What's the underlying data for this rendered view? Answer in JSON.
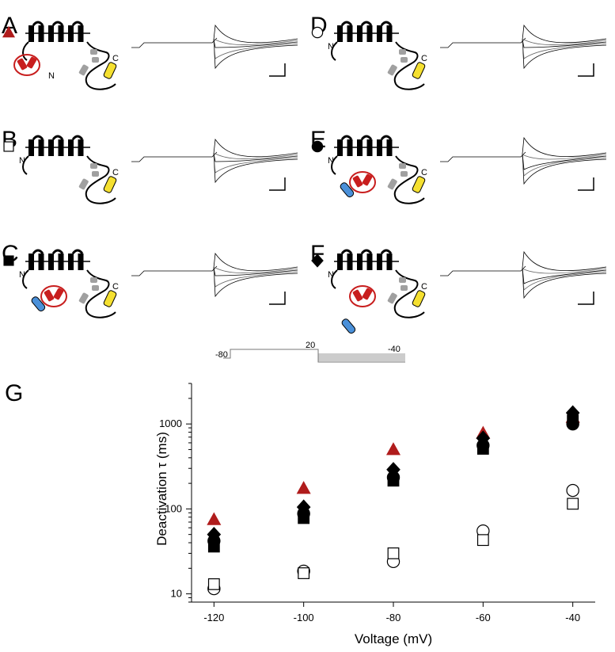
{
  "panels": [
    {
      "id": "A",
      "label": "A",
      "symbol": "triangle",
      "filled": true,
      "color": "#b01c1c",
      "blue": false,
      "red": true,
      "gray": true
    },
    {
      "id": "B",
      "label": "B",
      "symbol": "square",
      "filled": false,
      "color": "#000000",
      "blue": false,
      "red": false,
      "gray": true
    },
    {
      "id": "C",
      "label": "C",
      "symbol": "square",
      "filled": true,
      "color": "#000000",
      "blue": true,
      "red": true,
      "gray": true
    },
    {
      "id": "D",
      "label": "D",
      "symbol": "circle",
      "filled": false,
      "color": "#000000",
      "blue": false,
      "red": false,
      "gray": true
    },
    {
      "id": "E",
      "label": "E",
      "symbol": "circle",
      "filled": true,
      "color": "#000000",
      "blue": true,
      "red": true,
      "gray": true
    },
    {
      "id": "F",
      "label": "F",
      "symbol": "diamond",
      "filled": true,
      "color": "#000000",
      "blue": true,
      "red": true,
      "gray": true
    }
  ],
  "terminal_labels": {
    "n": "N",
    "c": "C"
  },
  "protocol": {
    "holding": "-80",
    "step": "20",
    "test": "-40"
  },
  "colors": {
    "red": "#c81e1e",
    "blue": "#4a90d9",
    "yellow": "#f5e030",
    "gray": "#a0a0a0",
    "dark_red": "#b01c1c"
  },
  "chart_data": {
    "type": "scatter",
    "label": "G",
    "xlabel": "Voltage (mV)",
    "ylabel": "Deactivation τ (ms)",
    "x": [
      -120,
      -100,
      -80,
      -60,
      -40
    ],
    "xlim": [
      -125,
      -35
    ],
    "ylim": [
      8,
      3000
    ],
    "yscale": "log",
    "xticks": [
      "-120",
      "-100",
      "-80",
      "-60",
      "-40"
    ],
    "yticks": [
      "10",
      "100",
      "1000"
    ],
    "series": [
      {
        "marker": "triangle",
        "filled": true,
        "color": "#b01c1c",
        "values": [
          75,
          175,
          500,
          780,
          1200
        ]
      },
      {
        "marker": "diamond",
        "filled": true,
        "color": "#000000",
        "values": [
          50,
          105,
          290,
          680,
          1350
        ]
      },
      {
        "marker": "circle",
        "filled": true,
        "color": "#000000",
        "values": [
          42,
          88,
          235,
          560,
          1000
        ]
      },
      {
        "marker": "square",
        "filled": true,
        "color": "#000000",
        "values": [
          36,
          78,
          215,
          510,
          1100
        ]
      },
      {
        "marker": "circle",
        "filled": false,
        "color": "#000000",
        "values": [
          11.5,
          18.5,
          24,
          55,
          165
        ]
      },
      {
        "marker": "square",
        "filled": false,
        "color": "#000000",
        "values": [
          13,
          17.5,
          30,
          43,
          115
        ]
      }
    ]
  }
}
